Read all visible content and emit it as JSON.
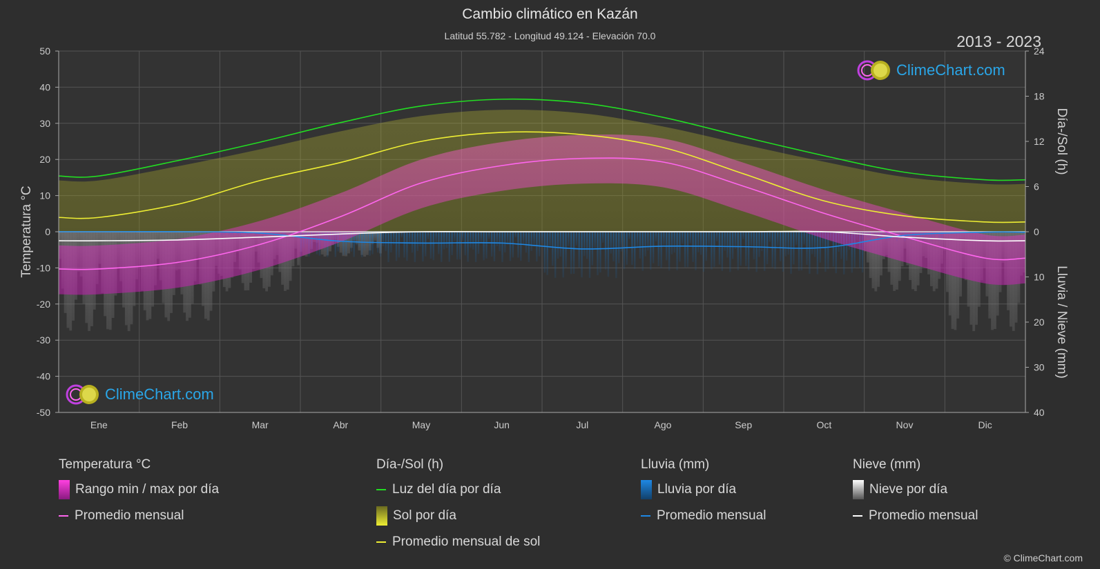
{
  "header": {
    "title": "Cambio climático en Kazán",
    "subtitle": "Latitud 55.782 - Longitud 49.124 - Elevación 70.0",
    "years": "2013 - 2023"
  },
  "logo_text": "ClimeChart.com",
  "copyright": "© ClimeChart.com",
  "colors": {
    "background": "#2e2e2e",
    "daylight": "#22dd22",
    "sunshine": "#eeee33",
    "temperature_avg": "#ff66ee",
    "temperature_range": "#e020d0",
    "rain": "#1e88e5",
    "snow": "#ffffff"
  },
  "chart_data": {
    "type": "line",
    "title": "Cambio climático en Kazán",
    "categories": [
      "Ene",
      "Feb",
      "Mar",
      "Abr",
      "May",
      "Jun",
      "Jul",
      "Ago",
      "Sep",
      "Oct",
      "Nov",
      "Dic"
    ],
    "axes": {
      "left": {
        "label": "Temperatura °C",
        "range": [
          -50,
          50
        ],
        "ticks": [
          50,
          40,
          30,
          20,
          10,
          0,
          -10,
          -20,
          -30,
          -40,
          -50
        ]
      },
      "right_top": {
        "label": "Día-/Sol (h)",
        "range": [
          0,
          24
        ],
        "ticks": [
          24,
          18,
          12,
          6,
          0
        ]
      },
      "right_bottom": {
        "label": "Lluvia / Nieve (mm)",
        "range": [
          0,
          40
        ],
        "ticks": [
          0,
          10,
          20,
          30,
          40
        ]
      }
    },
    "grid": true,
    "series": [
      {
        "name": "Luz del día por día",
        "unit": "h",
        "values": [
          7.4,
          9.5,
          11.9,
          14.5,
          16.7,
          17.6,
          17.1,
          15.2,
          12.6,
          10.1,
          7.9,
          6.9
        ]
      },
      {
        "name": "Promedio mensual de sol",
        "unit": "h",
        "values": [
          1.9,
          3.7,
          6.8,
          9.2,
          12.0,
          13.2,
          12.9,
          11.2,
          7.7,
          4.1,
          2.1,
          1.3
        ]
      },
      {
        "name": "Promedio mensual",
        "group": "Temperatura °C",
        "unit": "°C",
        "values": [
          -10.3,
          -8.4,
          -3.5,
          4.2,
          13.5,
          18.3,
          20.3,
          19.3,
          12.6,
          5.1,
          -1.4,
          -7.3
        ]
      },
      {
        "name": "Promedio mensual",
        "group": "Lluvia (mm)",
        "unit": "mm",
        "values": [
          0.0,
          0.0,
          0.3,
          2.1,
          2.5,
          2.5,
          3.8,
          3.2,
          3.3,
          3.5,
          0.8,
          0.1
        ]
      },
      {
        "name": "Promedio mensual",
        "group": "Nieve (mm)",
        "unit": "mm",
        "values": [
          2.0,
          1.8,
          1.2,
          0.5,
          0.0,
          0.0,
          0.0,
          0.0,
          0.0,
          0.0,
          1.2,
          2.0
        ]
      }
    ]
  },
  "legend": {
    "temperature": {
      "title": "Temperatura °C",
      "items": [
        "Rango min / max por día",
        "Promedio mensual"
      ]
    },
    "daysun": {
      "title": "Día-/Sol (h)",
      "items": [
        "Luz del día por día",
        "Sol por día",
        "Promedio mensual de sol"
      ]
    },
    "rain": {
      "title": "Lluvia (mm)",
      "items": [
        "Lluvia por día",
        "Promedio mensual"
      ]
    },
    "snow": {
      "title": "Nieve (mm)",
      "items": [
        "Nieve por día",
        "Promedio mensual"
      ]
    }
  }
}
